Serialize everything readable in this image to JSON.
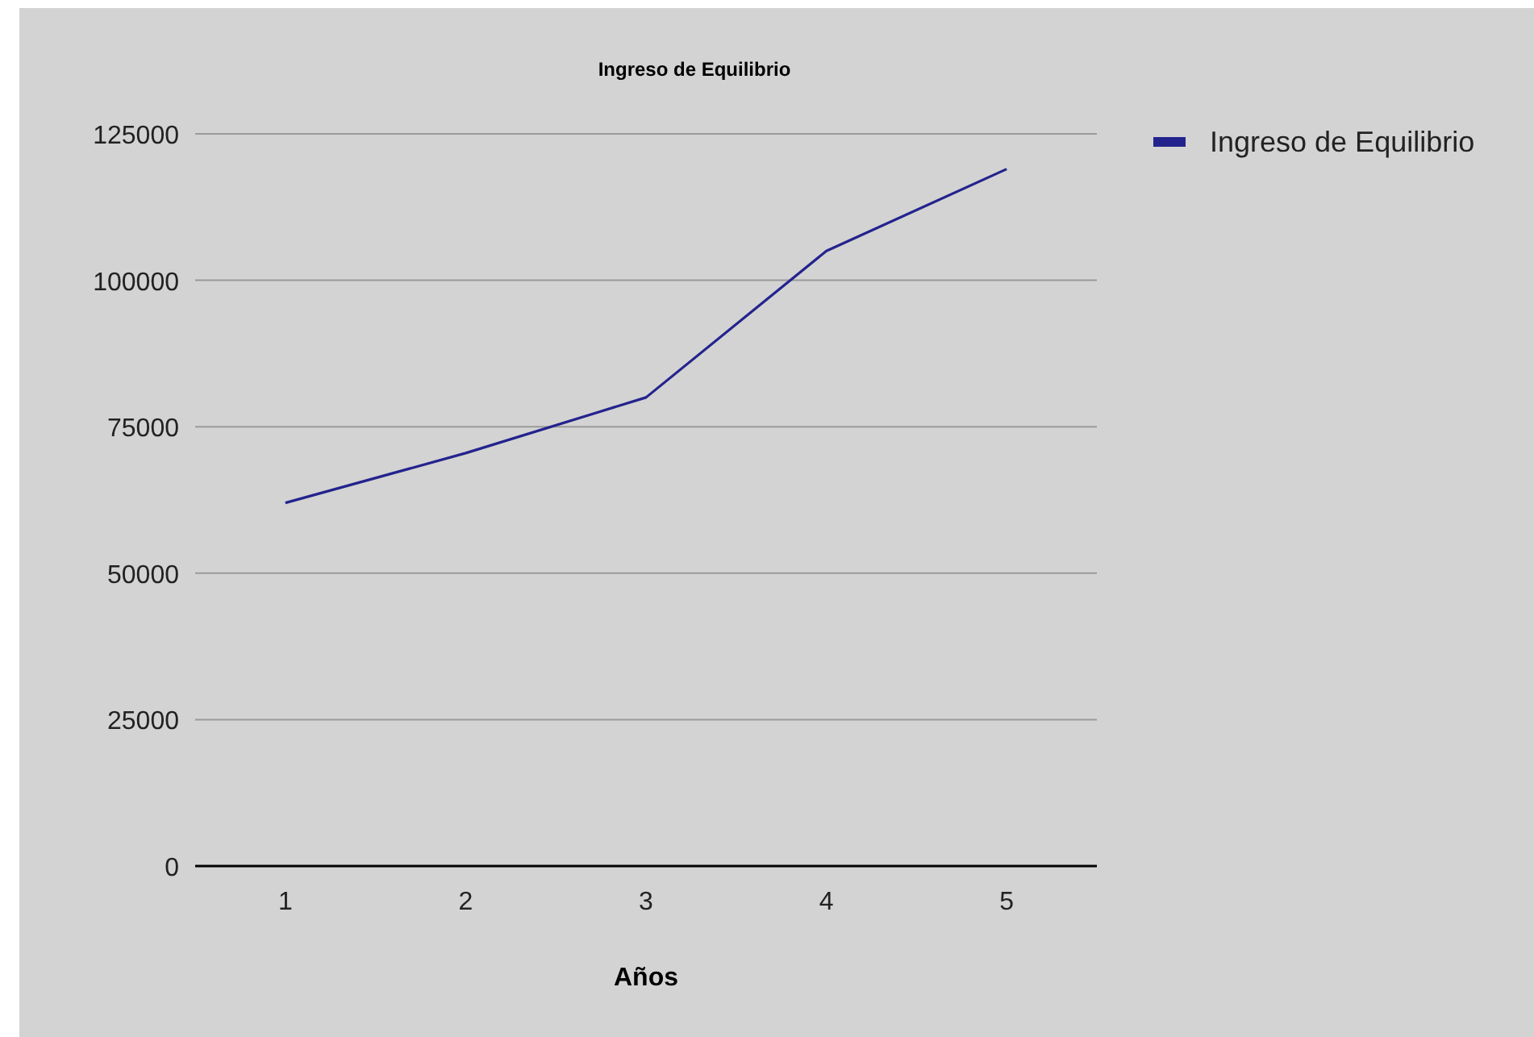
{
  "chart_data": {
    "type": "line",
    "title": "Ingreso de Equilibrio",
    "xlabel": "Años",
    "categories": [
      "1",
      "2",
      "3",
      "4",
      "5"
    ],
    "series": [
      {
        "name": "Ingreso de Equilibrio",
        "color": "#23238e",
        "values": [
          62000,
          70500,
          80000,
          105000,
          119000
        ]
      }
    ],
    "ylim": [
      0,
      125000
    ],
    "yticks": [
      0,
      25000,
      50000,
      75000,
      100000,
      125000
    ],
    "grid": "y",
    "legend": "top right",
    "marker": "none"
  }
}
